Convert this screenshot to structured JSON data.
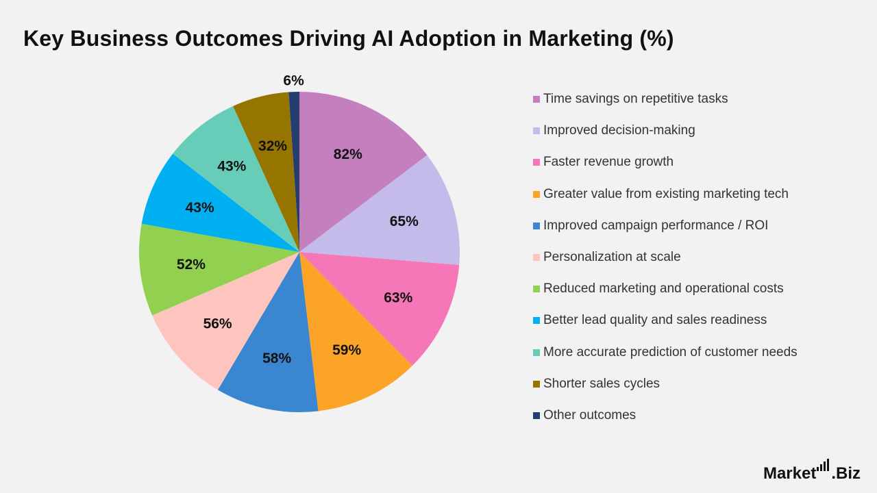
{
  "title": "Key Business Outcomes Driving AI Adoption in Marketing (%)",
  "brand": {
    "name_part1": "Market",
    "name_part2": ".Biz"
  },
  "chart_data": {
    "type": "pie",
    "title": "Key Business Outcomes Driving AI Adoption in Marketing (%)",
    "legend_position": "right",
    "categories": [
      "Time savings on repetitive tasks",
      "Improved decision-making",
      "Faster revenue growth",
      "Greater value from existing marketing tech",
      "Improved campaign performance / ROI",
      "Personalization at scale",
      "Reduced marketing and operational costs",
      "Better lead quality and sales readiness",
      "More accurate prediction of customer needs",
      "Shorter sales cycles",
      "Other outcomes"
    ],
    "values": [
      82,
      65,
      63,
      59,
      58,
      56,
      52,
      43,
      43,
      32,
      6
    ],
    "labels": [
      "82%",
      "65%",
      "63%",
      "59%",
      "58%",
      "56%",
      "52%",
      "43%",
      "43%",
      "32%",
      "6%"
    ],
    "colors": [
      "#c47fbf",
      "#c4bbea",
      "#f577b7",
      "#fba428",
      "#3a86d1",
      "#fec5bf",
      "#92d14f",
      "#00b0f0",
      "#67cdb9",
      "#967400",
      "#243f6f"
    ]
  }
}
